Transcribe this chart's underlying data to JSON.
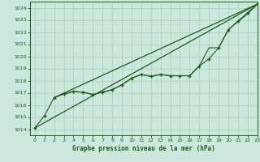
{
  "title": "Graphe pression niveau de la mer (hPa)",
  "bg_color": "#cce8dc",
  "grid_color": "#aaccbb",
  "line_color": "#1a5c1a",
  "xlim": [
    -0.5,
    23
  ],
  "ylim": [
    1013.5,
    1024.5
  ],
  "yticks": [
    1014,
    1015,
    1016,
    1017,
    1018,
    1019,
    1020,
    1021,
    1022,
    1023,
    1024
  ],
  "xticks": [
    0,
    1,
    2,
    3,
    4,
    5,
    6,
    7,
    8,
    9,
    10,
    11,
    12,
    13,
    14,
    15,
    16,
    17,
    18,
    19,
    20,
    21,
    22,
    23
  ],
  "series": [
    {
      "x": [
        0,
        1,
        2,
        3,
        4,
        5,
        6,
        7,
        8,
        9,
        10,
        11,
        12,
        13,
        14,
        15,
        16,
        17,
        18,
        19,
        20,
        21,
        22,
        23
      ],
      "y": [
        1014.1,
        1015.1,
        1016.6,
        1016.9,
        1017.1,
        1017.05,
        1016.85,
        1017.05,
        1017.25,
        1017.65,
        1018.2,
        1018.5,
        1018.35,
        1018.5,
        1018.4,
        1018.4,
        1018.4,
        1019.2,
        1019.8,
        1020.7,
        1022.2,
        1022.9,
        1023.6,
        1024.3
      ],
      "marker": "+",
      "markersize": 3.5,
      "linewidth": 0.8,
      "markeredgewidth": 1.0
    },
    {
      "x": [
        0,
        23
      ],
      "y": [
        1014.1,
        1024.3
      ],
      "marker": null,
      "markersize": 0,
      "linewidth": 0.9,
      "markeredgewidth": 0.5
    },
    {
      "x": [
        2,
        23
      ],
      "y": [
        1016.6,
        1024.3
      ],
      "marker": null,
      "markersize": 0,
      "linewidth": 0.9,
      "markeredgewidth": 0.5
    },
    {
      "x": [
        2,
        3,
        4,
        5,
        6,
        7,
        8,
        9,
        10,
        11,
        12,
        13,
        14,
        15,
        16,
        17,
        18,
        19,
        20,
        21,
        22,
        23
      ],
      "y": [
        1016.6,
        1016.9,
        1017.1,
        1017.05,
        1016.85,
        1017.05,
        1017.25,
        1017.65,
        1018.2,
        1018.5,
        1018.35,
        1018.5,
        1018.4,
        1018.4,
        1018.4,
        1019.2,
        1020.7,
        1020.7,
        1022.2,
        1022.85,
        1023.5,
        1024.3
      ],
      "marker": null,
      "markersize": 0,
      "linewidth": 0.8,
      "markeredgewidth": 0.5
    }
  ]
}
